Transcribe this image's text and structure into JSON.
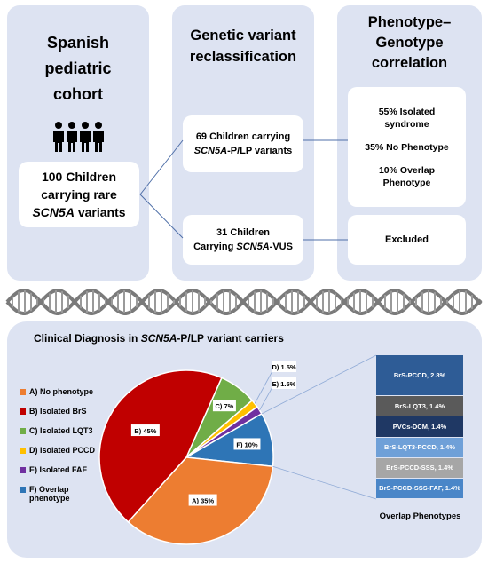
{
  "cohort": {
    "title_lines": [
      "Spanish",
      "pediatric",
      "cohort"
    ],
    "icon": "children-group-icon",
    "box": {
      "line1": "100 Children",
      "line2": "carrying rare",
      "gene": "SCN5A",
      "line3_suffix": " variants"
    }
  },
  "reclass": {
    "title_lines": [
      "Genetic variant",
      "reclassification"
    ],
    "plp_box": {
      "line1": "69 Children carrying",
      "gene": "SCN5A",
      "suffix": "-P/LP variants"
    },
    "vus_box": {
      "line1": "31 Children",
      "prefix": "Carrying ",
      "gene": "SCN5A",
      "suffix": "-VUS"
    }
  },
  "correlation": {
    "title_lines": [
      "Phenotype–",
      "Genotype",
      "correlation"
    ],
    "stats": {
      "s1a": "55%  Isolated",
      "s1b": "syndrome",
      "s2": "35% No Phenotype",
      "s3a": "10% Overlap",
      "s3b": "Phenotype"
    },
    "excluded": "Excluded"
  },
  "dna_icon": "dna-helix-icon",
  "clinical": {
    "title_prefix": "Clinical Diagnosis in ",
    "title_gene": "SCN5A",
    "title_suffix": "-P/LP variant carriers",
    "overlap_title": "Overlap Phenotypes",
    "overlap_items": [
      {
        "label": "BrS-PCCD, 2.8%",
        "value": 2.8,
        "color": "#2e5c96"
      },
      {
        "label": "BrS-LQT3, 1.4%",
        "value": 1.4,
        "color": "#5a5a5a"
      },
      {
        "label": "PVCs-DCM, 1.4%",
        "value": 1.4,
        "color": "#1f3864"
      },
      {
        "label": "BrS-LQT3-PCCD, 1.4%",
        "value": 1.4,
        "color": "#6fa0d8"
      },
      {
        "label": "BrS-PCCD-SSS, 1.4%",
        "value": 1.4,
        "color": "#a6a6a6"
      },
      {
        "label": "BrS-PCCD-SSS-FAF, 1.4%",
        "value": 1.4,
        "color": "#4a86c8"
      }
    ]
  },
  "chart_data": {
    "type": "pie",
    "title": "Clinical Diagnosis in SCN5A-P/LP variant carriers",
    "slices": [
      {
        "legend": "A) No phenotype",
        "label": "A) 35%",
        "value": 35,
        "color": "#ed7d31"
      },
      {
        "legend": "B) Isolated BrS",
        "label": "B) 45%",
        "value": 45,
        "color": "#c00000"
      },
      {
        "legend": "C) Isolated LQT3",
        "label": "C) 7%",
        "value": 7,
        "color": "#70ad47"
      },
      {
        "legend": "D) Isolated PCCD",
        "label": "D) 1.5%",
        "value": 1.5,
        "color": "#ffc000"
      },
      {
        "legend": "E) Isolated FAF",
        "label": "E) 1.5%",
        "value": 1.5,
        "color": "#7030a0"
      },
      {
        "legend": "F) Overlap phenotype",
        "label": "F) 10%",
        "value": 10,
        "color": "#2e75b6"
      }
    ],
    "legend_position": "left"
  }
}
